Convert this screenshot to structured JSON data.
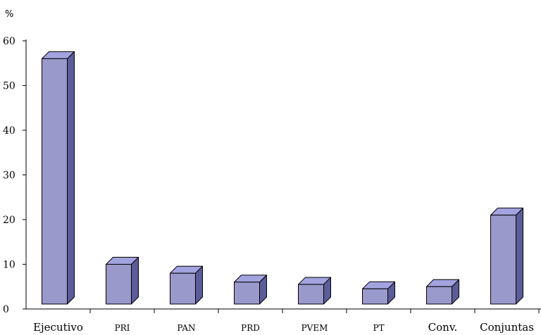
{
  "chart_data": {
    "type": "bar",
    "title": "",
    "xlabel": "",
    "ylabel": "",
    "y_unit": "%",
    "categories": [
      "Ejecutivo",
      "PRI",
      "PAN",
      "PRD",
      "PVEM",
      "PT",
      "Conv.",
      "Conjuntas"
    ],
    "values": [
      56,
      10,
      8,
      6,
      5.5,
      4.5,
      5,
      21
    ],
    "ylim": [
      0,
      60
    ],
    "yticks": [
      0,
      10,
      20,
      30,
      40,
      50,
      60
    ],
    "grid": false,
    "legend": "none",
    "bar_style": "3d",
    "colors": {
      "face": "#9999cc",
      "top": "#a3a3e0",
      "side": "#5c5c99"
    }
  }
}
